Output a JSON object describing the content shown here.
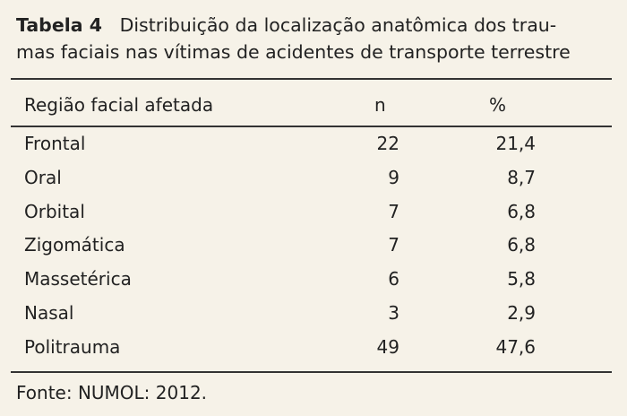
{
  "caption": {
    "label": "Tabela 4",
    "lines": [
      "Distribuição da localização anatômica dos trau-",
      "mas faciais nas vítimas de acidentes de transporte terrestre"
    ]
  },
  "table": {
    "header": [
      "Região facial afetada",
      "n",
      "%"
    ],
    "rows": [
      [
        "Frontal",
        "22",
        "21,4"
      ],
      [
        "Oral",
        "9",
        "8,7"
      ],
      [
        "Orbital",
        "7",
        "6,8"
      ],
      [
        "Zigomática",
        "7",
        "6,8"
      ],
      [
        "Massetérica",
        "6",
        "5,8"
      ],
      [
        "Nasal",
        "3",
        "2,9"
      ],
      [
        "Politrauma",
        "49",
        "47,6"
      ]
    ]
  },
  "footer": "Fonte: NUMOL: 2012."
}
